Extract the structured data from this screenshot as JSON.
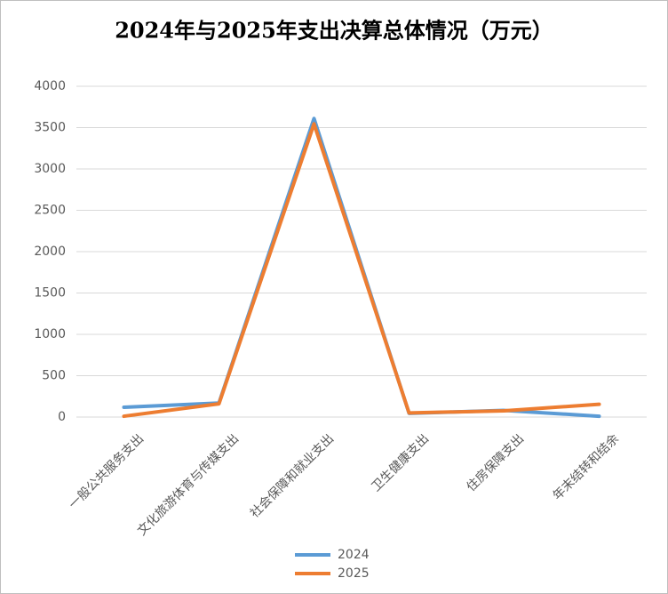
{
  "chart_data": {
    "type": "line",
    "title": "2024年与2025年支出决算总体情况（万元）",
    "categories": [
      "一般公共服务支出",
      "文化旅游体育与传媒支出",
      "社会保障和就业支出",
      "卫生健康支出",
      "住房保障支出",
      "年末结转和结余"
    ],
    "series": [
      {
        "name": "2024",
        "color": "#5b9bd5",
        "values": [
          118,
          170,
          3610,
          45,
          80,
          10
        ]
      },
      {
        "name": "2025",
        "color": "#ed7d31",
        "values": [
          10,
          160,
          3545,
          50,
          75,
          155
        ]
      }
    ],
    "ylim": [
      0,
      4000
    ],
    "yticks": [
      0,
      500,
      1000,
      1500,
      2000,
      2500,
      3000,
      3500,
      4000
    ],
    "grid": true,
    "legend": "bottom"
  }
}
